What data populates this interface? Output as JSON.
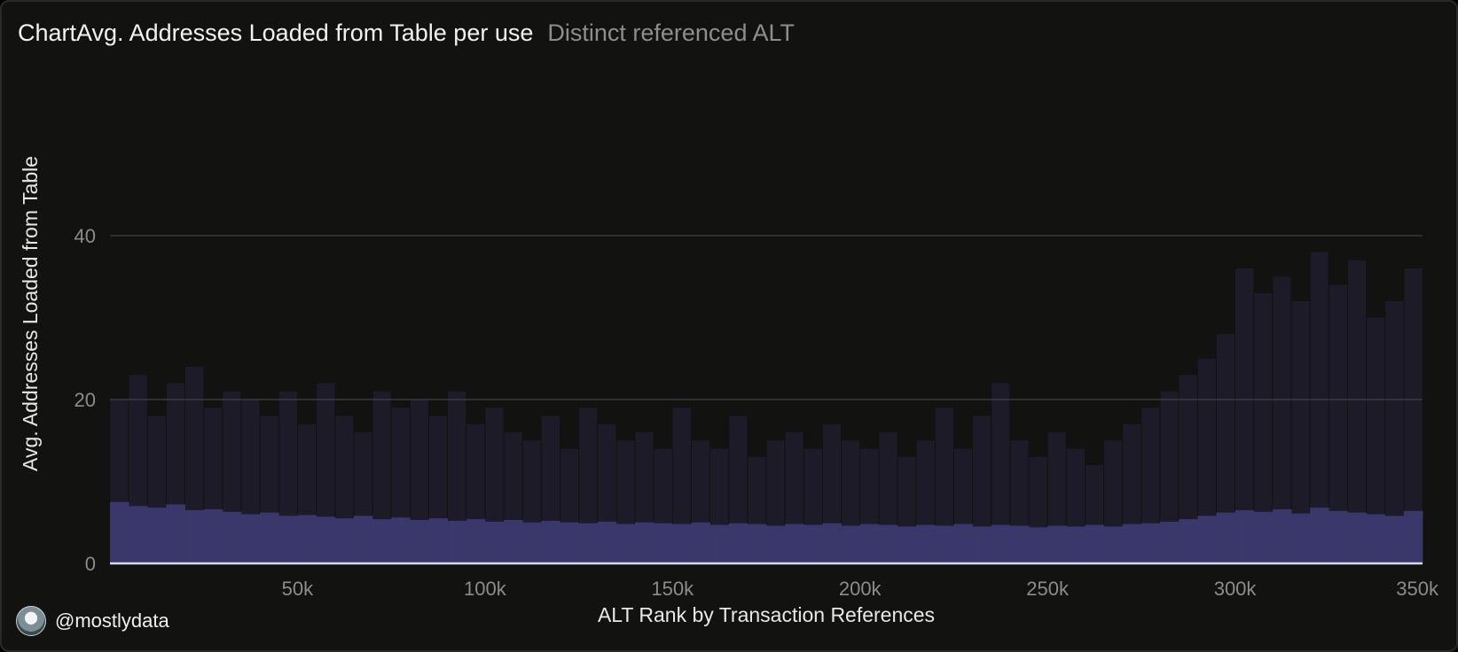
{
  "header": {
    "title": "ChartAvg. Addresses Loaded from Table per use",
    "subtitle": "Distinct referenced ALT"
  },
  "footer": {
    "handle": "@mostlydata",
    "avatar_icon": "avatar-icon"
  },
  "colors": {
    "bar": "#3f3c78",
    "baseline": "#d9d6f5",
    "grid": "#3a3a38",
    "tick": "#8c8c8c",
    "label": "#e8e8e8"
  },
  "chart_data": {
    "type": "bar",
    "title": "Avg. Addresses Loaded from Table per use",
    "xlabel": "ALT Rank by Transaction References",
    "ylabel": "Avg. Addresses Loaded from Table",
    "xlim": [
      0,
      350000
    ],
    "ylim": [
      0,
      48
    ],
    "yticks": [
      0,
      20,
      40
    ],
    "xticks": [
      50000,
      100000,
      150000,
      200000,
      250000,
      300000,
      350000
    ],
    "xtick_labels": [
      "50k",
      "100k",
      "150k",
      "200k",
      "250k",
      "300k",
      "350k"
    ],
    "ytick_labels": [
      "0",
      "20",
      "40"
    ],
    "grid": true,
    "legend": "none",
    "bin_width": 5000,
    "x": [
      2500,
      7500,
      12500,
      17500,
      22500,
      27500,
      32500,
      37500,
      42500,
      47500,
      52500,
      57500,
      62500,
      67500,
      72500,
      77500,
      82500,
      87500,
      92500,
      97500,
      102500,
      107500,
      112500,
      117500,
      122500,
      127500,
      132500,
      137500,
      142500,
      147500,
      152500,
      157500,
      162500,
      167500,
      172500,
      177500,
      182500,
      187500,
      192500,
      197500,
      202500,
      207500,
      212500,
      217500,
      222500,
      227500,
      232500,
      237500,
      242500,
      247500,
      252500,
      257500,
      262500,
      267500,
      272500,
      277500,
      282500,
      287500,
      292500,
      297500,
      302500,
      307500,
      312500,
      317500,
      322500,
      327500,
      332500,
      337500,
      342500,
      347500
    ],
    "values": [
      7.5,
      7.0,
      6.8,
      7.2,
      6.5,
      6.6,
      6.3,
      6.0,
      6.2,
      5.8,
      5.9,
      5.7,
      5.5,
      5.8,
      5.4,
      5.6,
      5.3,
      5.5,
      5.2,
      5.4,
      5.1,
      5.3,
      5.0,
      5.2,
      5.0,
      4.9,
      5.1,
      4.8,
      5.0,
      4.9,
      4.8,
      5.0,
      4.7,
      4.9,
      4.8,
      4.6,
      4.8,
      4.7,
      4.9,
      4.6,
      4.8,
      4.7,
      4.5,
      4.7,
      4.6,
      4.8,
      4.5,
      4.7,
      4.6,
      4.4,
      4.6,
      4.5,
      4.7,
      4.5,
      4.8,
      4.9,
      5.1,
      5.4,
      5.8,
      6.2,
      6.5,
      6.3,
      6.6,
      6.1,
      6.8,
      6.4,
      6.2,
      6.0,
      5.8,
      6.4
    ],
    "peaks": [
      20,
      23,
      18,
      22,
      24,
      19,
      21,
      20,
      18,
      21,
      17,
      22,
      18,
      16,
      21,
      19,
      20,
      18,
      21,
      17,
      19,
      16,
      15,
      18,
      14,
      19,
      17,
      15,
      16,
      14,
      19,
      15,
      14,
      18,
      13,
      15,
      16,
      14,
      17,
      15,
      14,
      16,
      13,
      15,
      19,
      14,
      18,
      22,
      15,
      13,
      16,
      14,
      12,
      15,
      17,
      19,
      21,
      23,
      25,
      28,
      36,
      33,
      35,
      32,
      38,
      34,
      37,
      30,
      32,
      36
    ]
  }
}
